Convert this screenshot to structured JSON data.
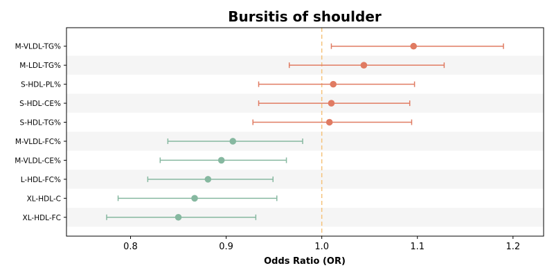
{
  "chart_data": {
    "type": "forest",
    "title": "Bursitis of shoulder",
    "xlabel": "Odds Ratio (OR)",
    "xlim": [
      0.733,
      1.232
    ],
    "xticks": [
      0.8,
      0.9,
      1.0,
      1.1,
      1.2
    ],
    "xtick_labels": [
      "0.8",
      "0.9",
      "1.0",
      "1.1",
      "1.2"
    ],
    "reference_line": 1.0,
    "grid": false,
    "row_banding": true,
    "colors": {
      "positive": "#e07b62",
      "negative": "#86b8a0",
      "reference": "#f5c27a",
      "band": "#f5f5f5"
    },
    "rows": [
      {
        "label": "M-VLDL-TG%",
        "or": 1.096,
        "lower": 1.01,
        "upper": 1.19
      },
      {
        "label": "M-LDL-TG%",
        "or": 1.044,
        "lower": 0.966,
        "upper": 1.128
      },
      {
        "label": "S-HDL-PL%",
        "or": 1.012,
        "lower": 0.934,
        "upper": 1.097
      },
      {
        "label": "S-HDL-CE%",
        "or": 1.01,
        "lower": 0.934,
        "upper": 1.092
      },
      {
        "label": "S-HDL-TG%",
        "or": 1.008,
        "lower": 0.928,
        "upper": 1.094
      },
      {
        "label": "M-VLDL-FC%",
        "or": 0.907,
        "lower": 0.839,
        "upper": 0.98
      },
      {
        "label": "M-VLDL-CE%",
        "or": 0.895,
        "lower": 0.831,
        "upper": 0.963
      },
      {
        "label": "L-HDL-FC%",
        "or": 0.881,
        "lower": 0.818,
        "upper": 0.949
      },
      {
        "label": "XL-HDL-C",
        "or": 0.867,
        "lower": 0.787,
        "upper": 0.953
      },
      {
        "label": "XL-HDL-FC",
        "or": 0.85,
        "lower": 0.775,
        "upper": 0.931
      }
    ]
  }
}
